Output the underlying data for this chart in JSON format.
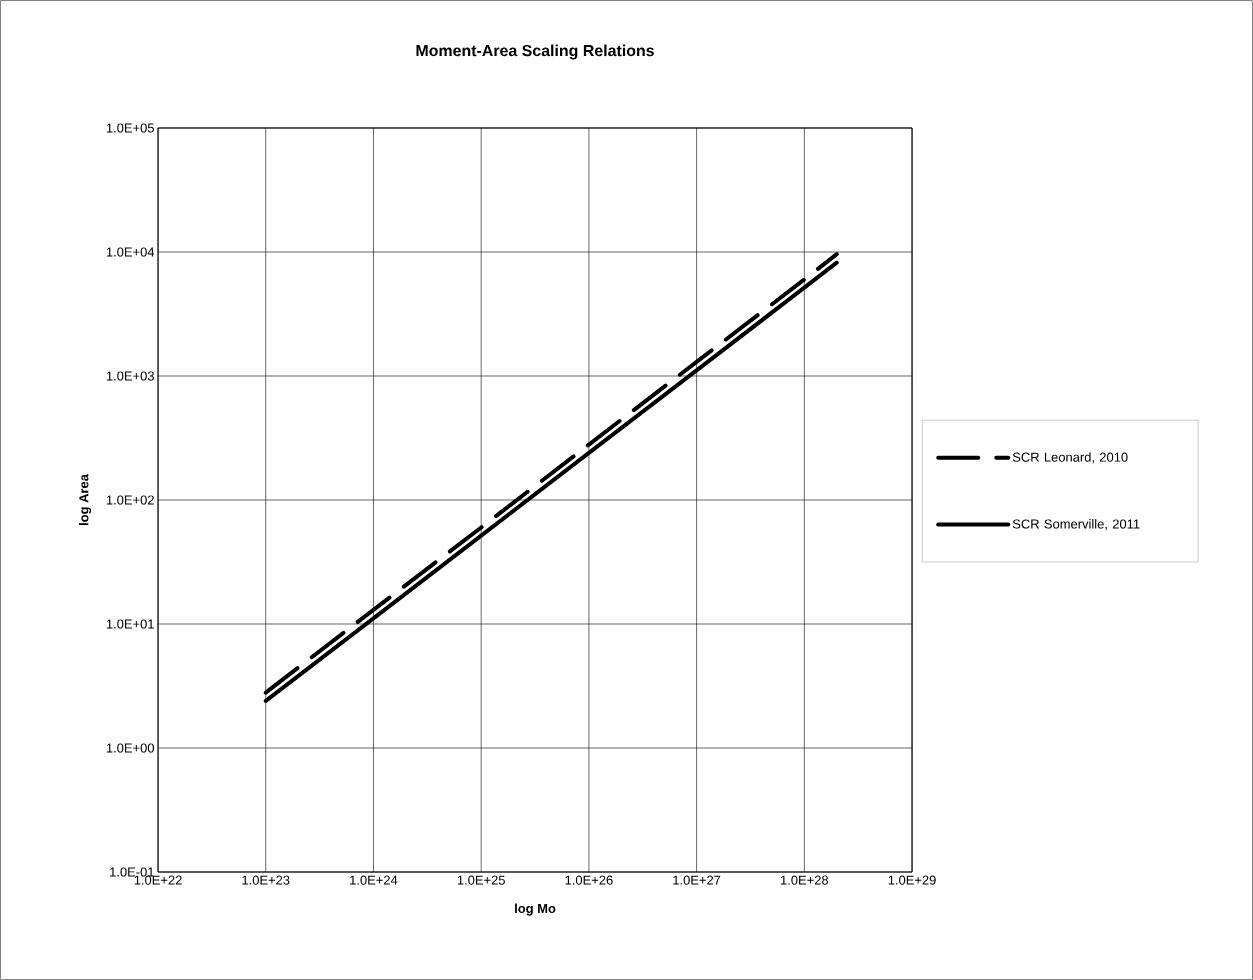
{
  "chart_data": {
    "type": "line",
    "title": "Moment-Area Scaling Relations",
    "xlabel": "log Mo",
    "ylabel": "log Area",
    "log": "xy",
    "x": [
      1e+23,
      1e+24,
      1e+25,
      1e+26,
      1e+27,
      1e+28,
      2e+28
    ],
    "series": [
      {
        "name": "SCR Leonard, 2010",
        "color": "#000000",
        "line_style": "dashed",
        "values": [
          2.8,
          13,
          60,
          280,
          1300,
          6000,
          9600
        ]
      },
      {
        "name": "SCR Somerville, 2011",
        "color": "#000000",
        "line_style": "solid",
        "values": [
          2.4,
          11.1,
          51.6,
          240,
          1110,
          5160,
          8200
        ]
      }
    ],
    "xlim": [
      1e+22,
      1e+29
    ],
    "ylim": [
      0.1,
      100000
    ],
    "xticks": [
      {
        "value": 1e+22,
        "label": "1.0E+22"
      },
      {
        "value": 1e+23,
        "label": "1.0E+23"
      },
      {
        "value": 1e+24,
        "label": "1.0E+24"
      },
      {
        "value": 1e+25,
        "label": "1.0E+25"
      },
      {
        "value": 1e+26,
        "label": "1.0E+26"
      },
      {
        "value": 1e+27,
        "label": "1.0E+27"
      },
      {
        "value": 1e+28,
        "label": "1.0E+28"
      },
      {
        "value": 1e+29,
        "label": "1.0E+29"
      }
    ],
    "yticks": [
      {
        "value": 0.1,
        "label": "1.0E-01"
      },
      {
        "value": 1,
        "label": "1.0E+00"
      },
      {
        "value": 10,
        "label": "1.0E+01"
      },
      {
        "value": 100,
        "label": "1.0E+02"
      },
      {
        "value": 1000,
        "label": "1.0E+03"
      },
      {
        "value": 10000,
        "label": "1.0E+04"
      },
      {
        "value": 100000,
        "label": "1.0E+05"
      }
    ],
    "grid": true,
    "legend": "right",
    "marker": "none"
  }
}
